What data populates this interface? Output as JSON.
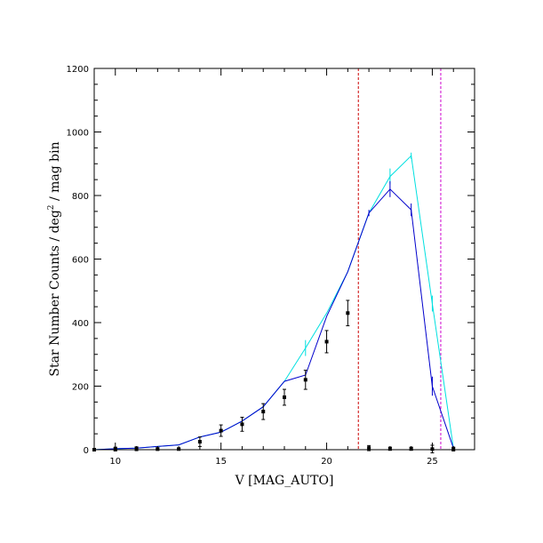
{
  "chart_data": {
    "type": "line",
    "xlabel": "V [MAG_AUTO]",
    "ylabel_main": "Star Number Counts  /  deg",
    "ylabel_sup": "2",
    "ylabel_tail": "  /  mag bin",
    "xlim": [
      9,
      27
    ],
    "ylim": [
      0,
      1200
    ],
    "x_ticks": [
      10,
      15,
      20,
      25
    ],
    "y_ticks": [
      0,
      200,
      400,
      600,
      800,
      1000,
      1200
    ],
    "series": [
      {
        "color": "#00e0e0",
        "points": [
          [
            9,
            0
          ],
          [
            10,
            3
          ],
          [
            11,
            5
          ],
          [
            12,
            10
          ],
          [
            13,
            15
          ],
          [
            14,
            40
          ],
          [
            15,
            55
          ],
          [
            16,
            90
          ],
          [
            17,
            135
          ],
          [
            18,
            215
          ],
          [
            19,
            320
          ],
          [
            20,
            430
          ],
          [
            21,
            560
          ],
          [
            22,
            745
          ],
          [
            23,
            860
          ],
          [
            24,
            925
          ],
          [
            25,
            460
          ],
          [
            26,
            5
          ]
        ],
        "errors": [
          0,
          0,
          0,
          0,
          0,
          0,
          0,
          0,
          0,
          0,
          25,
          0,
          0,
          0,
          25,
          10,
          25,
          0
        ]
      },
      {
        "color": "#0000cc",
        "points": [
          [
            9,
            0
          ],
          [
            10,
            3
          ],
          [
            11,
            5
          ],
          [
            12,
            10
          ],
          [
            13,
            15
          ],
          [
            14,
            40
          ],
          [
            15,
            55
          ],
          [
            16,
            90
          ],
          [
            17,
            135
          ],
          [
            18,
            215
          ],
          [
            19,
            235
          ],
          [
            20,
            420
          ],
          [
            21,
            560
          ],
          [
            22,
            745
          ],
          [
            23,
            820
          ],
          [
            24,
            755
          ],
          [
            25,
            200
          ],
          [
            26,
            5
          ]
        ],
        "errors": [
          0,
          0,
          0,
          0,
          0,
          0,
          0,
          0,
          0,
          0,
          0,
          0,
          0,
          10,
          25,
          20,
          30,
          0
        ]
      },
      {
        "color": "#000000",
        "markers_only": true,
        "points": [
          [
            9,
            0
          ],
          [
            10,
            2
          ],
          [
            11,
            3
          ],
          [
            12,
            2
          ],
          [
            13,
            2
          ],
          [
            14,
            25
          ],
          [
            15,
            60
          ],
          [
            16,
            80
          ],
          [
            17,
            120
          ],
          [
            18,
            165
          ],
          [
            19,
            220
          ],
          [
            20,
            340
          ],
          [
            21,
            430
          ],
          [
            22,
            5
          ],
          [
            23,
            3
          ],
          [
            24,
            3
          ],
          [
            25,
            2
          ],
          [
            26,
            2
          ]
        ],
        "errors": [
          0,
          6,
          6,
          4,
          3,
          15,
          18,
          22,
          25,
          25,
          30,
          35,
          40,
          8,
          5,
          5,
          12,
          6
        ]
      }
    ],
    "vlines": [
      {
        "x": 21.5,
        "color": "#cc0000"
      },
      {
        "x": 25.4,
        "color": "#cc00cc"
      }
    ]
  }
}
